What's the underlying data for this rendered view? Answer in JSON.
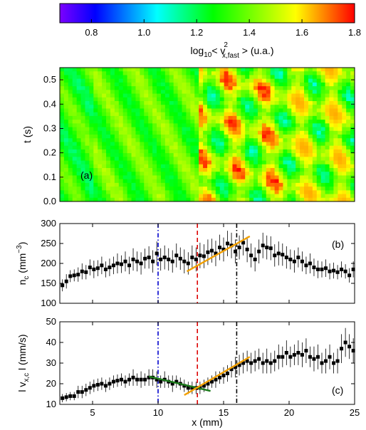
{
  "chart_data": [
    {
      "type": "heatmap",
      "panel_label": "(a)",
      "ylabel": "t (s)",
      "xlim": [
        2.5,
        25
      ],
      "ylim": [
        0,
        0.55
      ],
      "yticks": [
        "0.0",
        "0.1",
        "0.2",
        "0.3",
        "0.4",
        "0.5"
      ],
      "colorbar": {
        "label_main": "log",
        "label_sub": "10",
        "label_mid": "< v",
        "label_sup": "2",
        "label_sub2": "x,fast",
        "label_end": " > (u.a.)",
        "range": [
          0.68,
          1.8
        ],
        "ticks": [
          "0.8",
          "1.0",
          "1.2",
          "1.4",
          "1.6",
          "1.8"
        ],
        "colormap": [
          "#7c00ff",
          "#0000ff",
          "#00ffff",
          "#00ff00",
          "#ffff00",
          "#ff0000"
        ]
      },
      "description_values": {
        "left_region_level": 1.35,
        "right_region_hot_level": 1.75,
        "transition_x": 13
      }
    },
    {
      "type": "scatter",
      "panel_label": "(b)",
      "ylabel_main": "n",
      "ylabel_sub": "c",
      "ylabel_unit": " (mm",
      "ylabel_sup": "−3",
      "ylabel_close": ")",
      "xlim": [
        2.5,
        25
      ],
      "ylim": [
        100,
        300
      ],
      "yticks": [
        "100",
        "150",
        "200",
        "250",
        "300"
      ],
      "x": [
        2.7,
        3.0,
        3.3,
        3.6,
        3.9,
        4.2,
        4.5,
        4.8,
        5.1,
        5.4,
        5.7,
        6.0,
        6.3,
        6.6,
        6.9,
        7.2,
        7.5,
        7.8,
        8.1,
        8.4,
        8.7,
        9.0,
        9.3,
        9.6,
        9.9,
        10.2,
        10.5,
        10.8,
        11.1,
        11.4,
        11.7,
        12.0,
        12.3,
        12.6,
        12.9,
        13.2,
        13.5,
        13.8,
        14.1,
        14.4,
        14.7,
        15.0,
        15.3,
        15.6,
        15.9,
        16.2,
        16.5,
        16.8,
        17.1,
        17.4,
        17.7,
        18.0,
        18.3,
        18.6,
        18.9,
        19.2,
        19.5,
        19.8,
        20.1,
        20.4,
        20.7,
        21.0,
        21.3,
        21.6,
        21.9,
        22.2,
        22.5,
        22.8,
        23.1,
        23.4,
        23.7,
        24.0,
        24.3,
        24.6,
        24.9
      ],
      "y": [
        145,
        155,
        168,
        170,
        172,
        180,
        178,
        190,
        185,
        188,
        195,
        185,
        190,
        195,
        200,
        198,
        205,
        195,
        210,
        205,
        200,
        212,
        215,
        205,
        225,
        210,
        215,
        210,
        205,
        220,
        212,
        205,
        200,
        215,
        210,
        220,
        218,
        228,
        232,
        225,
        240,
        235,
        250,
        245,
        230,
        240,
        252,
        235,
        220,
        210,
        230,
        245,
        240,
        238,
        220,
        225,
        222,
        215,
        210,
        205,
        215,
        205,
        195,
        200,
        190,
        185,
        185,
        188,
        180,
        182,
        178,
        185,
        180,
        170,
        185
      ],
      "err": [
        15,
        18,
        15,
        15,
        18,
        20,
        18,
        20,
        22,
        20,
        22,
        20,
        22,
        22,
        25,
        22,
        25,
        22,
        28,
        25,
        28,
        25,
        28,
        28,
        30,
        28,
        30,
        28,
        28,
        30,
        28,
        30,
        28,
        30,
        30,
        32,
        30,
        32,
        30,
        32,
        32,
        30,
        32,
        32,
        30,
        30,
        32,
        32,
        30,
        30,
        30,
        32,
        30,
        30,
        28,
        30,
        28,
        28,
        25,
        28,
        25,
        25,
        22,
        25,
        22,
        22,
        20,
        22,
        20,
        20,
        18,
        20,
        18,
        18,
        20
      ],
      "vlines": [
        {
          "x": 10,
          "color": "#0000cc",
          "style": "dashdot"
        },
        {
          "x": 13,
          "color": "#dd0000",
          "style": "dash"
        },
        {
          "x": 16,
          "color": "#000000",
          "style": "dashdot"
        }
      ],
      "fits": [
        {
          "x": [
            12.2,
            17.0
          ],
          "y": [
            180,
            268
          ],
          "color": "#f2a000"
        }
      ]
    },
    {
      "type": "scatter",
      "panel_label": "(c)",
      "ylabel_pre": "l v",
      "ylabel_sub": "x,c",
      "ylabel_post": " l (mm/s)",
      "xlabel": "x (mm)",
      "xlim": [
        2.5,
        25
      ],
      "ylim": [
        10,
        50
      ],
      "xticks": [
        "5",
        "10",
        "15",
        "20",
        "25"
      ],
      "yticks": [
        "10",
        "20",
        "30",
        "40",
        "50"
      ],
      "x": [
        2.7,
        3.0,
        3.3,
        3.6,
        3.9,
        4.2,
        4.5,
        4.8,
        5.1,
        5.4,
        5.7,
        6.0,
        6.3,
        6.6,
        6.9,
        7.2,
        7.5,
        7.8,
        8.1,
        8.4,
        8.7,
        9.0,
        9.3,
        9.6,
        9.9,
        10.2,
        10.5,
        10.8,
        11.1,
        11.4,
        11.7,
        12.0,
        12.3,
        12.6,
        12.9,
        13.2,
        13.5,
        13.8,
        14.1,
        14.4,
        14.7,
        15.0,
        15.3,
        15.6,
        15.9,
        16.2,
        16.5,
        16.8,
        17.1,
        17.4,
        17.7,
        18.0,
        18.3,
        18.6,
        18.9,
        19.2,
        19.5,
        19.8,
        20.1,
        20.4,
        20.7,
        21.0,
        21.3,
        21.6,
        21.9,
        22.2,
        22.5,
        22.8,
        23.1,
        23.4,
        23.7,
        24.0,
        24.3,
        24.6,
        24.9
      ],
      "y": [
        13,
        13.5,
        14,
        14,
        16,
        16,
        17,
        18,
        19,
        19.5,
        20,
        19,
        20,
        21,
        21.5,
        22,
        21,
        22,
        23,
        22,
        22,
        22,
        23,
        23,
        22,
        21,
        22,
        21,
        20,
        21,
        20,
        19,
        18,
        18,
        18,
        18,
        19,
        20,
        21,
        22,
        23,
        24,
        25,
        27,
        28,
        29,
        30,
        31,
        30,
        31,
        32,
        30,
        31,
        30,
        31,
        33,
        33,
        35,
        33,
        34,
        35,
        34,
        36,
        33,
        32,
        33,
        30,
        31,
        33,
        30,
        31,
        37,
        40,
        38,
        36
      ],
      "err": [
        2,
        2,
        2,
        2,
        3,
        3,
        3,
        3,
        3,
        3,
        3,
        3,
        3,
        3,
        3,
        3,
        3,
        3,
        4,
        3,
        4,
        3,
        4,
        4,
        4,
        3,
        4,
        3,
        4,
        3,
        3,
        3,
        3,
        3,
        3,
        3,
        3,
        3,
        3,
        4,
        3,
        4,
        4,
        4,
        5,
        5,
        5,
        5,
        5,
        5,
        5,
        5,
        6,
        5,
        5,
        6,
        5,
        6,
        5,
        5,
        6,
        6,
        6,
        5,
        6,
        6,
        5,
        6,
        6,
        5,
        6,
        7,
        7,
        6,
        6
      ],
      "vlines": [
        {
          "x": 10,
          "color": "#0000cc",
          "style": "dashdot"
        },
        {
          "x": 13,
          "color": "#dd0000",
          "style": "dash"
        },
        {
          "x": 16,
          "color": "#000000",
          "style": "dashdot"
        }
      ],
      "fits": [
        {
          "x": [
            9.3,
            14.0
          ],
          "y": [
            23.5,
            16.5
          ],
          "color": "#1a7a1a"
        },
        {
          "x": [
            12.0,
            17.0
          ],
          "y": [
            14.5,
            33.0
          ],
          "color": "#f2a000"
        }
      ]
    }
  ]
}
